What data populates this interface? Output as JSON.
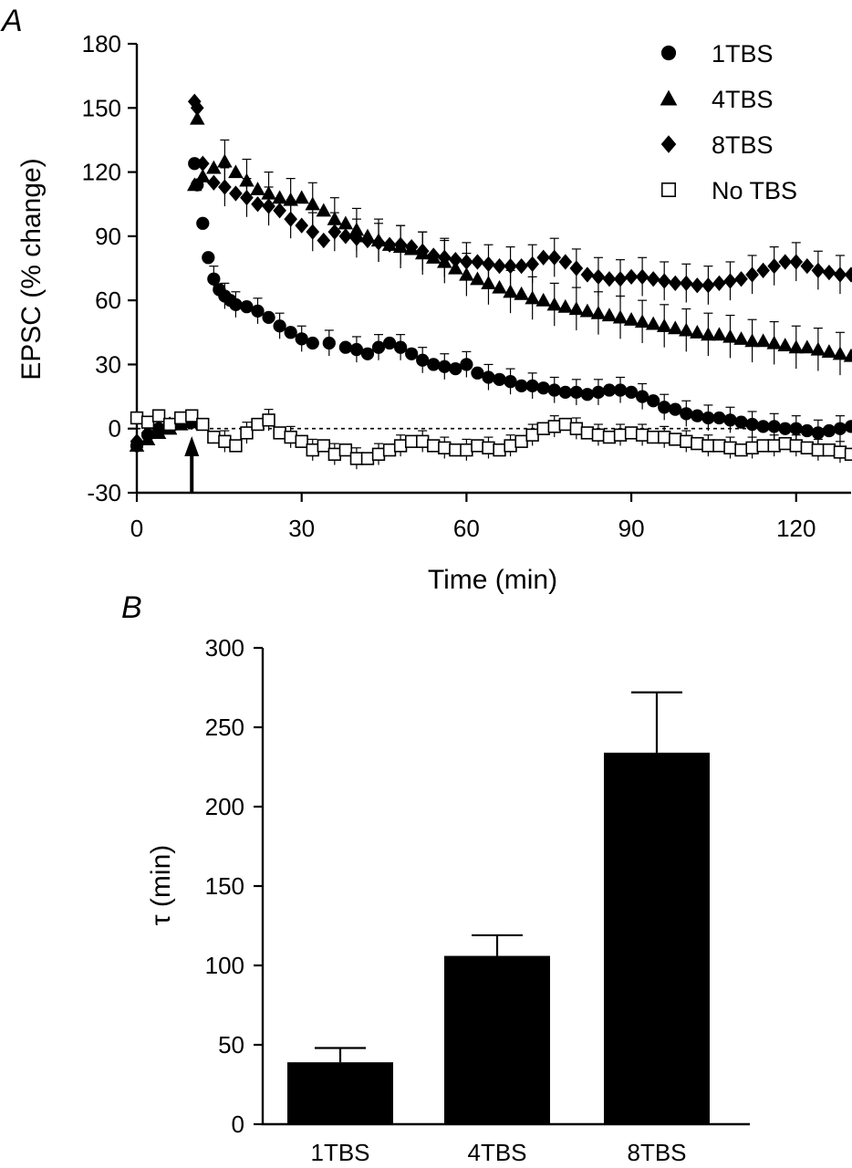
{
  "chart_data": [
    {
      "panel": "A",
      "type": "scatter",
      "ylabel": "EPSC (% change)",
      "xlabel": "Time (min)",
      "xlim": [
        0,
        130
      ],
      "ylim": [
        -30,
        180
      ],
      "xticks": [
        "0",
        "30",
        "60",
        "90",
        "120"
      ],
      "yticks": [
        "-30",
        "0",
        "30",
        "60",
        "90",
        "120",
        "150",
        "180"
      ],
      "reference_line_y": 0,
      "stimulus_arrow_x": 10,
      "legend_position": "top-right",
      "series": [
        {
          "name": "1TBS",
          "marker": "circle",
          "x": [
            0,
            2,
            4,
            6,
            8,
            10,
            10.5,
            11,
            12,
            13,
            14,
            15,
            16,
            17,
            18,
            20,
            22,
            24,
            26,
            28,
            30,
            32,
            35,
            38,
            40,
            42,
            44,
            46,
            48,
            50,
            52,
            54,
            56,
            58,
            60,
            62,
            64,
            66,
            68,
            70,
            72,
            74,
            76,
            78,
            80,
            82,
            84,
            86,
            88,
            90,
            92,
            94,
            96,
            98,
            100,
            102,
            104,
            106,
            108,
            110,
            112,
            114,
            116,
            118,
            120,
            122,
            124,
            126,
            128,
            130
          ],
          "y": [
            -8,
            -3,
            0,
            2,
            3,
            3,
            124,
            114,
            96,
            80,
            70,
            65,
            62,
            60,
            58,
            57,
            55,
            52,
            48,
            45,
            42,
            40,
            40,
            38,
            37,
            35,
            38,
            40,
            38,
            35,
            32,
            30,
            29,
            28,
            30,
            26,
            24,
            23,
            22,
            20,
            20,
            19,
            18,
            17,
            17,
            16,
            17,
            18,
            18,
            17,
            15,
            13,
            10,
            9,
            7,
            6,
            5,
            5,
            4,
            3,
            2,
            1,
            1,
            0,
            0,
            -1,
            -2,
            -1,
            0,
            1
          ]
        },
        {
          "name": "4TBS",
          "marker": "triangle",
          "x": [
            0,
            2,
            4,
            6,
            8,
            10,
            10.5,
            11,
            12,
            14,
            16,
            18,
            20,
            22,
            24,
            26,
            28,
            30,
            32,
            34,
            36,
            38,
            40,
            42,
            44,
            46,
            48,
            50,
            52,
            54,
            56,
            58,
            60,
            62,
            64,
            66,
            68,
            70,
            72,
            74,
            76,
            78,
            80,
            82,
            84,
            86,
            88,
            90,
            92,
            94,
            96,
            98,
            100,
            102,
            104,
            106,
            108,
            110,
            112,
            114,
            116,
            118,
            120,
            122,
            124,
            126,
            128,
            130
          ],
          "y": [
            -8,
            -5,
            -2,
            0,
            2,
            3,
            114,
            145,
            118,
            122,
            125,
            120,
            116,
            112,
            110,
            108,
            107,
            108,
            105,
            102,
            98,
            96,
            93,
            90,
            88,
            86,
            85,
            84,
            82,
            80,
            78,
            75,
            72,
            70,
            68,
            66,
            64,
            63,
            61,
            60,
            58,
            57,
            56,
            55,
            54,
            53,
            52,
            51,
            50,
            49,
            48,
            47,
            46,
            45,
            44,
            44,
            43,
            42,
            41,
            41,
            40,
            39,
            38,
            38,
            37,
            36,
            35,
            34
          ]
        },
        {
          "name": "8TBS",
          "marker": "diamond",
          "x": [
            0,
            2,
            4,
            6,
            8,
            10,
            10.5,
            11,
            12,
            14,
            16,
            18,
            20,
            22,
            24,
            26,
            28,
            30,
            32,
            34,
            36,
            38,
            40,
            42,
            44,
            46,
            48,
            50,
            52,
            54,
            56,
            58,
            60,
            62,
            64,
            66,
            68,
            70,
            72,
            74,
            76,
            78,
            80,
            82,
            84,
            86,
            88,
            90,
            92,
            94,
            96,
            98,
            100,
            102,
            104,
            106,
            108,
            110,
            112,
            114,
            116,
            118,
            120,
            122,
            124,
            126,
            128,
            130
          ],
          "y": [
            -6,
            -2,
            0,
            2,
            3,
            3,
            153,
            150,
            124,
            115,
            113,
            110,
            108,
            105,
            104,
            102,
            98,
            95,
            92,
            88,
            92,
            90,
            89,
            88,
            87,
            86,
            86,
            85,
            83,
            81,
            80,
            79,
            78,
            78,
            77,
            76,
            76,
            76,
            77,
            80,
            80,
            78,
            75,
            72,
            71,
            70,
            70,
            71,
            71,
            70,
            69,
            68,
            68,
            67,
            67,
            68,
            69,
            70,
            72,
            74,
            76,
            78,
            78,
            76,
            74,
            73,
            72,
            72
          ]
        },
        {
          "name": "No TBS",
          "marker": "open-square",
          "x": [
            0,
            2,
            4,
            6,
            8,
            10,
            12,
            14,
            16,
            18,
            20,
            22,
            24,
            26,
            28,
            30,
            32,
            34,
            36,
            38,
            40,
            42,
            44,
            46,
            48,
            50,
            52,
            54,
            56,
            58,
            60,
            62,
            64,
            66,
            68,
            70,
            72,
            74,
            76,
            78,
            80,
            82,
            84,
            86,
            88,
            90,
            92,
            94,
            96,
            98,
            100,
            102,
            104,
            106,
            108,
            110,
            112,
            114,
            116,
            118,
            120,
            122,
            124,
            126,
            128,
            130
          ],
          "y": [
            5,
            3,
            6,
            2,
            5,
            6,
            2,
            -4,
            -6,
            -8,
            -2,
            2,
            4,
            -2,
            -4,
            -6,
            -10,
            -8,
            -12,
            -10,
            -14,
            -14,
            -12,
            -10,
            -8,
            -6,
            -6,
            -8,
            -9,
            -10,
            -10,
            -8,
            -9,
            -10,
            -8,
            -6,
            -3,
            0,
            1,
            2,
            0,
            -2,
            -3,
            -4,
            -3,
            -2,
            -3,
            -4,
            -4,
            -5,
            -6,
            -7,
            -8,
            -8,
            -9,
            -10,
            -9,
            -8,
            -8,
            -7,
            -8,
            -9,
            -10,
            -10,
            -11,
            -12
          ]
        }
      ]
    },
    {
      "panel": "B",
      "type": "bar",
      "ylabel": "τ (min)",
      "ylim": [
        0,
        300
      ],
      "yticks": [
        "0",
        "50",
        "100",
        "150",
        "200",
        "250",
        "300"
      ],
      "categories": [
        "1TBS",
        "4TBS",
        "8TBS"
      ],
      "values": [
        39,
        106,
        234
      ],
      "errors": [
        9,
        13,
        38
      ]
    }
  ]
}
